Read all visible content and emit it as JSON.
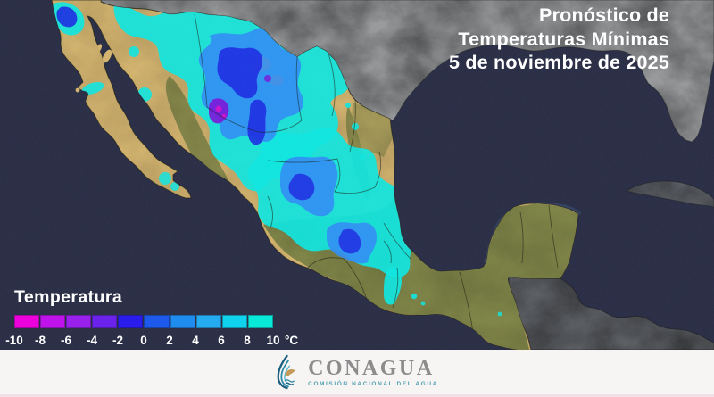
{
  "header": {
    "title_lines": [
      "Pronóstico de",
      "Temperaturas Mínimas",
      "5 de noviembre de 2025"
    ]
  },
  "legend": {
    "label": "Temperatura",
    "unit": "°C",
    "ticks": [
      "-10",
      "-8",
      "-6",
      "-4",
      "-2",
      "0",
      "2",
      "4",
      "6",
      "8",
      "10"
    ],
    "segment_colors": [
      "#ec00dc",
      "#c013ec",
      "#9a20ec",
      "#6b23ec",
      "#2a1dec",
      "#1d5aec",
      "#1f8df0",
      "#25abf0",
      "#0fd2ec",
      "#09e9d8"
    ]
  },
  "footer": {
    "brand": "CONAGUA",
    "brand_subtitle": "COMISIÓN NACIONAL DEL AGUA"
  },
  "map": {
    "colors": {
      "ocean": "#272b43",
      "us_land": "#97999b",
      "foreign_land": "#5c5f64",
      "cuba_land": "#61656b",
      "mexico_arid": "#d4b46d",
      "mexico_humid": "#7d8344",
      "coast_line": "#191c12",
      "shallow_water": "#44618c",
      "temp_cyan": "#0ce6e0",
      "temp_light_blue": "#2f8df5",
      "temp_blue": "#1b2ae2",
      "temp_purple": "#7a12d8",
      "temp_magenta": "#cf10cc"
    }
  }
}
